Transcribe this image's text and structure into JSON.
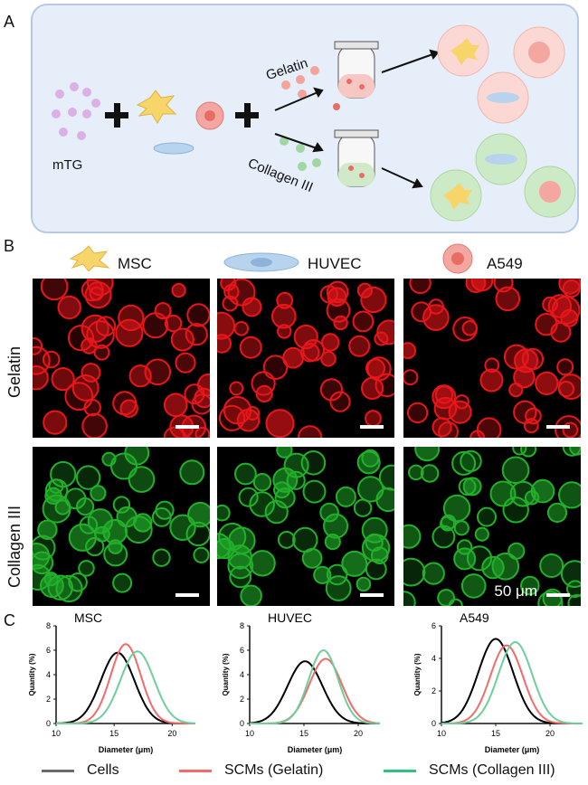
{
  "panels": {
    "a": "A",
    "b": "B",
    "c": "C"
  },
  "schematic": {
    "mtg_label": "mTG",
    "gelatin_label": "Gelatin",
    "collagen_label": "Collagen III",
    "plus": "+"
  },
  "cell_types": [
    "MSC",
    "HUVEC",
    "A549"
  ],
  "rows": {
    "gelatin": "Gelatin",
    "collagen": "Collagen III"
  },
  "colors": {
    "gelatin": "#e8161a",
    "collagen": "#22b02a",
    "cells": "#000000",
    "gel_curve": "#f26a6a",
    "col_curve": "#6dcf9a"
  },
  "scale_bar_label": "50 μm",
  "chart_data": [
    {
      "type": "line",
      "title": "MSC",
      "xlabel": "Diameter (μm)",
      "ylabel": "Quantity (%)",
      "xlim": [
        10,
        22
      ],
      "ylim": [
        0,
        8
      ],
      "xticks": [
        "10",
        "15",
        "20"
      ],
      "yticks": [
        "0",
        "2",
        "4",
        "6",
        "8"
      ],
      "series": [
        {
          "name": "Cells",
          "peak_x": 15.3,
          "peak_y": 5.8,
          "sigma": 1.45
        },
        {
          "name": "SCMs (Gelatin)",
          "peak_x": 16.0,
          "peak_y": 6.5,
          "sigma": 1.3
        },
        {
          "name": "SCMs (Collagen III)",
          "peak_x": 17.0,
          "peak_y": 5.9,
          "sigma": 1.45
        }
      ]
    },
    {
      "type": "line",
      "title": "HUVEC",
      "xlabel": "Diameter (μm)",
      "ylabel": "Quantity (%)",
      "xlim": [
        10,
        22
      ],
      "ylim": [
        0,
        8
      ],
      "xticks": [
        "10",
        "15",
        "20"
      ],
      "yticks": [
        "0",
        "2",
        "4",
        "6",
        "8"
      ],
      "series": [
        {
          "name": "Cells",
          "peak_x": 15.1,
          "peak_y": 5.1,
          "sigma": 1.6
        },
        {
          "name": "SCMs (Gelatin)",
          "peak_x": 17.0,
          "peak_y": 5.3,
          "sigma": 1.5
        },
        {
          "name": "SCMs (Collagen III)",
          "peak_x": 16.8,
          "peak_y": 6.0,
          "sigma": 1.35
        }
      ]
    },
    {
      "type": "line",
      "title": "A549",
      "xlabel": "Diameter (μm)",
      "ylabel": "Quantity (%)",
      "xlim": [
        10,
        23
      ],
      "ylim": [
        0,
        6
      ],
      "xticks": [
        "10",
        "15",
        "20"
      ],
      "yticks": [
        "0",
        "2",
        "4",
        "6"
      ],
      "series": [
        {
          "name": "Cells",
          "peak_x": 15.0,
          "peak_y": 5.2,
          "sigma": 1.6
        },
        {
          "name": "SCMs (Gelatin)",
          "peak_x": 16.0,
          "peak_y": 4.8,
          "sigma": 1.5
        },
        {
          "name": "SCMs (Collagen III)",
          "peak_x": 16.8,
          "peak_y": 5.0,
          "sigma": 1.55
        }
      ]
    }
  ],
  "legend": [
    {
      "label": "Cells",
      "color": "#6b6b6b"
    },
    {
      "label": "SCMs (Gelatin)",
      "color": "#f26a6a"
    },
    {
      "label": "SCMs (Collagen III)",
      "color": "#2ec27e"
    }
  ]
}
